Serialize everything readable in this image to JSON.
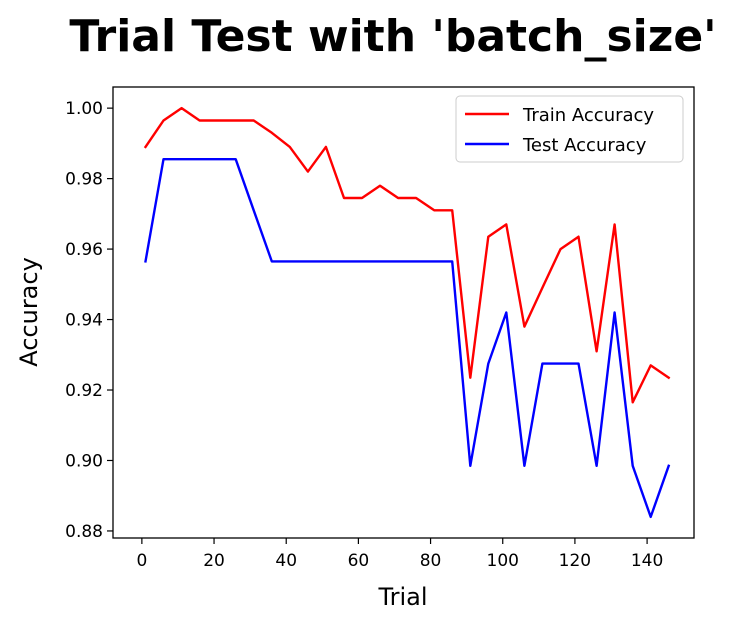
{
  "chart_data": {
    "type": "line",
    "title": "Trial Test with 'batch_size'",
    "xlabel": "Trial",
    "ylabel": "Accuracy",
    "xlim": [
      -8,
      153
    ],
    "ylim": [
      0.878,
      1.006
    ],
    "xticks": [
      0,
      20,
      40,
      60,
      80,
      100,
      120,
      140
    ],
    "yticks": [
      0.88,
      0.9,
      0.92,
      0.94,
      0.96,
      0.98,
      1.0
    ],
    "ytick_labels": [
      "0.88",
      "0.90",
      "0.92",
      "0.94",
      "0.96",
      "0.98",
      "1.00"
    ],
    "legend_position": "top-right",
    "x": [
      1,
      6,
      11,
      16,
      21,
      26,
      31,
      36,
      41,
      46,
      51,
      56,
      61,
      66,
      71,
      76,
      81,
      86,
      91,
      96,
      101,
      106,
      111,
      116,
      121,
      126,
      131,
      136,
      141,
      146
    ],
    "series": [
      {
        "name": "Train Accuracy",
        "color": "#ff0000",
        "values": [
          0.989,
          0.9965,
          1.0,
          0.9965,
          0.9965,
          0.9965,
          0.9965,
          0.993,
          0.989,
          0.982,
          0.989,
          0.9745,
          0.9745,
          0.978,
          0.9745,
          0.9745,
          0.971,
          0.971,
          0.9235,
          0.9635,
          0.967,
          0.938,
          0.949,
          0.96,
          0.9635,
          0.931,
          0.967,
          0.9165,
          0.927,
          0.9235
        ]
      },
      {
        "name": "Test Accuracy",
        "color": "#0000ff",
        "values": [
          0.9565,
          0.9855,
          0.9855,
          0.9855,
          0.9855,
          0.9855,
          0.971,
          0.9565,
          0.9565,
          0.9565,
          0.9565,
          0.9565,
          0.9565,
          0.9565,
          0.9565,
          0.9565,
          0.9565,
          0.9565,
          0.8985,
          0.9275,
          0.942,
          0.8985,
          0.9275,
          0.9275,
          0.9275,
          0.8985,
          0.942,
          0.8985,
          0.884,
          0.8985
        ]
      }
    ]
  }
}
